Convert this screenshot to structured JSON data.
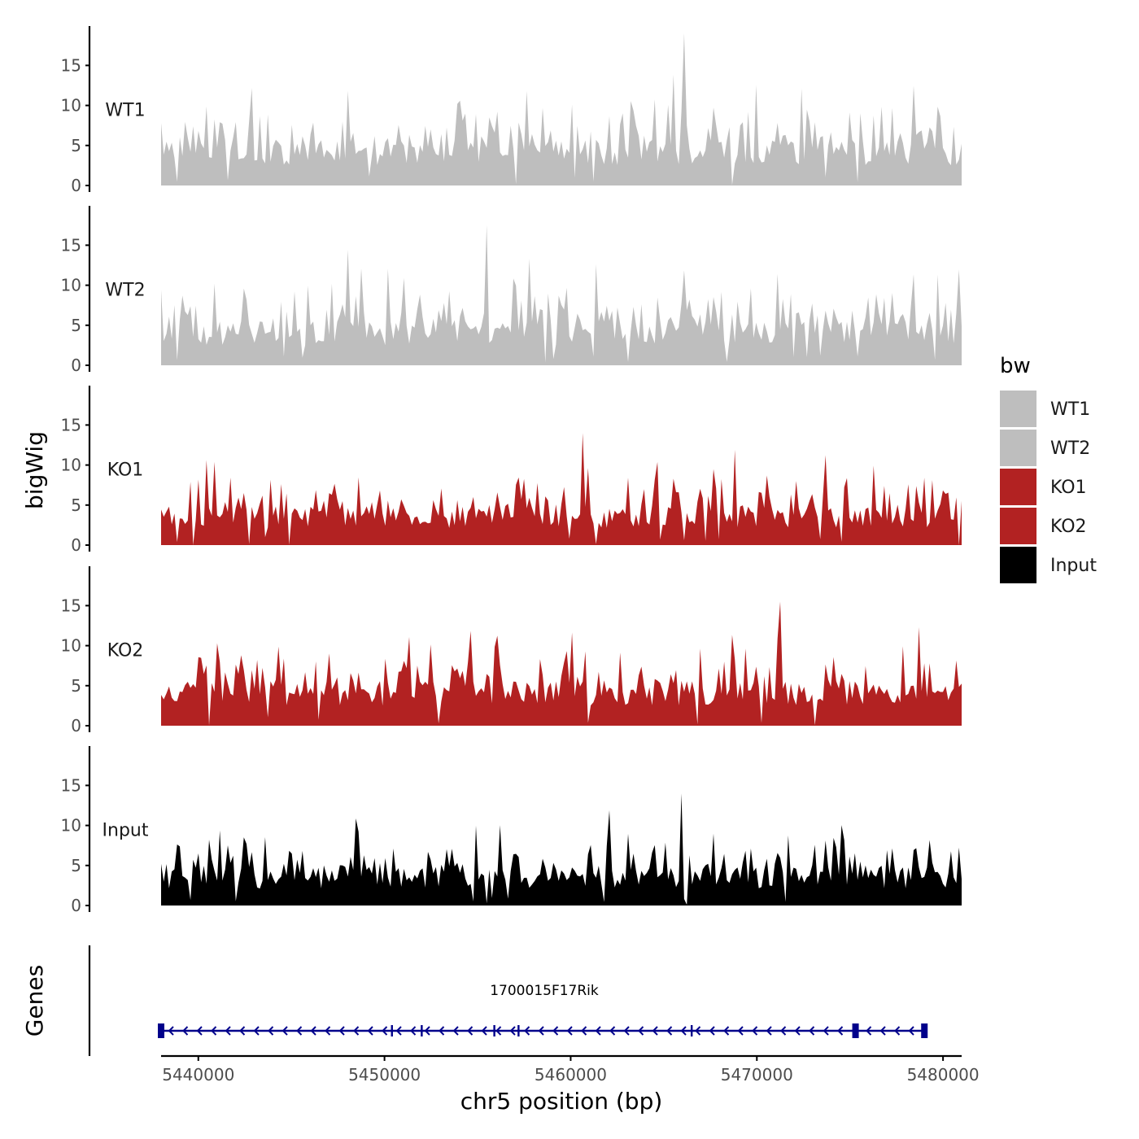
{
  "chart_data": {
    "type": "area",
    "title": "",
    "xlabel": "chr5 position (bp)",
    "ylabel": "bigWig",
    "genes_label": "Genes",
    "x_range": [
      5438000,
      5481000
    ],
    "x_ticks": [
      5440000,
      5450000,
      5460000,
      5470000,
      5480000
    ],
    "x_tick_labels": [
      "5440000",
      "5450000",
      "5460000",
      "5470000",
      "5480000"
    ],
    "ylim": [
      0,
      19.5
    ],
    "y_ticks": [
      0,
      5,
      10,
      15
    ],
    "y_tick_labels": [
      "0",
      "5",
      "10",
      "15"
    ],
    "legend": {
      "title": "bw",
      "position": "right",
      "entries": [
        {
          "label": "WT1",
          "color": "#bebebe"
        },
        {
          "label": "WT2",
          "color": "#bebebe"
        },
        {
          "label": "KO1",
          "color": "#b22222"
        },
        {
          "label": "KO2",
          "color": "#b22222"
        },
        {
          "label": "Input",
          "color": "#000000"
        }
      ]
    },
    "series": [
      {
        "name": "WT1",
        "color": "#bebebe",
        "max": 19
      },
      {
        "name": "WT2",
        "color": "#bebebe",
        "max": 17.5
      },
      {
        "name": "KO1",
        "color": "#b22222",
        "max": 14
      },
      {
        "name": "KO2",
        "color": "#b22222",
        "max": 15.5
      },
      {
        "name": "Input",
        "color": "#000000",
        "max": 14
      }
    ],
    "gene": {
      "name": "1700015F17Rik",
      "start": 5438000,
      "end": 5479000,
      "strand": "-",
      "color": "#00008b",
      "exons": [
        5438000,
        5450400,
        5452000,
        5455900,
        5457200,
        5466500,
        5475300,
        5479000
      ]
    }
  }
}
